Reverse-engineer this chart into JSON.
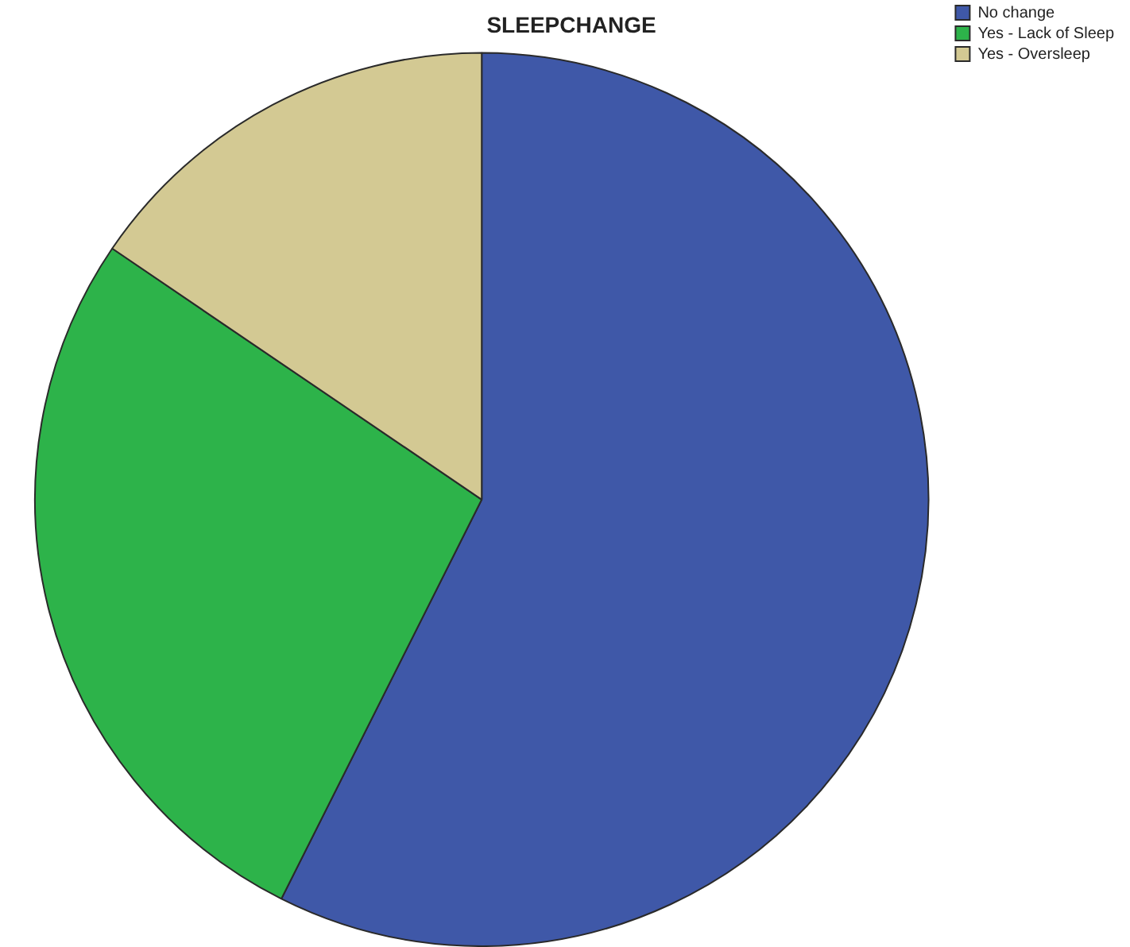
{
  "chart_data": {
    "type": "pie",
    "title": "SLEEPCHANGE",
    "categories": [
      "No change",
      "Yes - Lack of Sleep",
      "Yes - Oversleep"
    ],
    "values": [
      57.4,
      27.1,
      15.5
    ],
    "colors": [
      "#3f58a8",
      "#2db34a",
      "#d3c993"
    ],
    "legend": "top right"
  }
}
